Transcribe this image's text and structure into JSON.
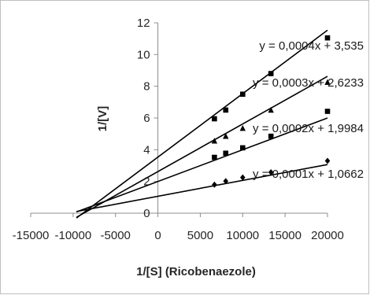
{
  "chart_data": {
    "type": "scatter",
    "title": "",
    "xlabel": "1/[S] (Ricobenaezole)",
    "ylabel": "1/[V]",
    "xlim": [
      -15000,
      20000
    ],
    "ylim": [
      0,
      12
    ],
    "x_ticks": [
      "-15000",
      "-10000",
      "-5000",
      "0",
      "5000",
      "10000",
      "15000",
      "20000"
    ],
    "y_ticks": [
      "0",
      "2",
      "4",
      "6",
      "8",
      "10",
      "12"
    ],
    "grid": false,
    "legend": "none",
    "series": [
      {
        "marker": "diamond",
        "color": "#000000",
        "x": [
          6667,
          8000,
          10000,
          13333,
          20000
        ],
        "y": [
          1.8,
          2.02,
          2.25,
          2.58,
          3.3
        ],
        "trendline": {
          "slope": 0.0001,
          "intercept": 1.0662,
          "x_start": -9600,
          "x_end": 20000
        },
        "equation": "y = 0,0001x + 1,0662"
      },
      {
        "marker": "square",
        "color": "#000000",
        "x": [
          6667,
          8000,
          10000,
          13333,
          20000
        ],
        "y": [
          3.52,
          3.78,
          4.12,
          4.85,
          6.42
        ],
        "trendline": {
          "slope": 0.0002,
          "intercept": 1.9984,
          "x_start": -9600,
          "x_end": 20000
        },
        "equation": "y = 0,0002x + 1,9984"
      },
      {
        "marker": "triangle",
        "color": "#000000",
        "x": [
          6667,
          8000,
          10000,
          13333,
          20000
        ],
        "y": [
          4.55,
          4.85,
          5.35,
          6.5,
          8.25
        ],
        "trendline": {
          "slope": 0.0003,
          "intercept": 2.6233,
          "x_start": -9600,
          "x_end": 20000
        },
        "equation": "y = 0,0003x + 2,6233"
      },
      {
        "marker": "square",
        "color": "#000000",
        "x": [
          6667,
          8000,
          10000,
          13333,
          20000
        ],
        "y": [
          5.95,
          6.5,
          7.5,
          8.8,
          11.05
        ],
        "trendline": {
          "slope": 0.0004,
          "intercept": 3.535,
          "x_start": -9600,
          "x_end": 20000
        },
        "equation": "y = 0,0004x + 3,535"
      }
    ]
  }
}
